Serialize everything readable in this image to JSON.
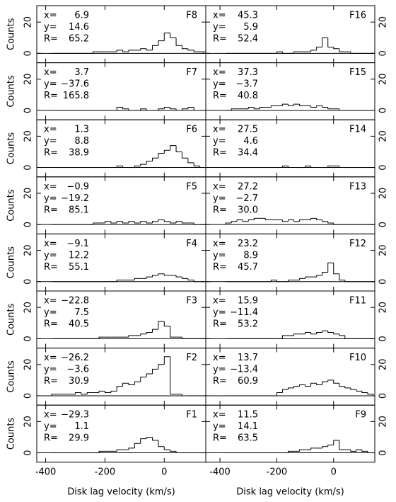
{
  "chart_data": [
    {
      "type": "histogram",
      "label": "F8",
      "stats": [
        [
          "x=",
          "6.9"
        ],
        [
          "y=",
          "14.6"
        ],
        [
          "R=",
          "65.2"
        ]
      ],
      "ylabel": "Counts",
      "bins": [
        -380,
        -360,
        -340,
        -320,
        -300,
        -280,
        -260,
        -240,
        -220,
        -200,
        -180,
        -160,
        -140,
        -120,
        -100,
        -80,
        -60,
        -40,
        -20,
        0,
        20,
        40,
        60,
        80,
        100,
        120,
        140
      ],
      "counts": [
        0,
        0,
        0,
        0,
        0,
        0,
        0,
        1,
        1,
        1,
        1,
        2,
        1,
        2,
        2,
        3,
        2,
        5,
        8,
        13,
        10,
        5,
        3,
        2,
        1,
        1
      ],
      "xlim": [
        -430,
        140
      ],
      "ylim": [
        -6,
        30.5
      ],
      "xticks": [
        -400,
        -200,
        0
      ],
      "yticks": [
        0,
        20
      ]
    },
    {
      "type": "histogram",
      "label": "F7",
      "stats": [
        [
          "x=",
          "3.7"
        ],
        [
          "y=",
          "−37.6"
        ],
        [
          "R=",
          "165.8"
        ]
      ],
      "ylabel": "Counts",
      "bins": [
        -380,
        -360,
        -340,
        -320,
        -300,
        -280,
        -260,
        -240,
        -220,
        -200,
        -180,
        -160,
        -140,
        -120,
        -100,
        -80,
        -60,
        -40,
        -20,
        0,
        20,
        40,
        60,
        80,
        100,
        120,
        140
      ],
      "counts": [
        0,
        0,
        0,
        0,
        0,
        0,
        0,
        0,
        0,
        0,
        0,
        2,
        1,
        0,
        0,
        1,
        0,
        0,
        1,
        2,
        1,
        0,
        1,
        2,
        0,
        0
      ],
      "xlim": [
        -430,
        140
      ],
      "ylim": [
        -6,
        30.5
      ],
      "xticks": [
        -400,
        -200,
        0
      ],
      "yticks": [
        0,
        20
      ]
    },
    {
      "type": "histogram",
      "label": "F6",
      "stats": [
        [
          "x=",
          "1.3"
        ],
        [
          "y=",
          "8.8"
        ],
        [
          "R=",
          "38.9"
        ]
      ],
      "ylabel": "Counts",
      "bins": [
        -380,
        -360,
        -340,
        -320,
        -300,
        -280,
        -260,
        -240,
        -220,
        -200,
        -180,
        -160,
        -140,
        -120,
        -100,
        -80,
        -60,
        -40,
        -20,
        0,
        20,
        40,
        60,
        80,
        100,
        120,
        140
      ],
      "counts": [
        0,
        0,
        0,
        0,
        0,
        0,
        0,
        0,
        0,
        0,
        0,
        1,
        0,
        0,
        1,
        2,
        4,
        6,
        9,
        11,
        14,
        10,
        6,
        3,
        1,
        0
      ],
      "xlim": [
        -430,
        140
      ],
      "ylim": [
        -6,
        30.5
      ],
      "xticks": [
        -400,
        -200,
        0
      ],
      "yticks": [
        0,
        20
      ]
    },
    {
      "type": "histogram",
      "label": "F5",
      "stats": [
        [
          "x=",
          "−0.9"
        ],
        [
          "y=",
          "−19.2"
        ],
        [
          "R=",
          "85.1"
        ]
      ],
      "ylabel": "Counts",
      "bins": [
        -380,
        -360,
        -340,
        -320,
        -300,
        -280,
        -260,
        -240,
        -220,
        -200,
        -180,
        -160,
        -140,
        -120,
        -100,
        -80,
        -60,
        -40,
        -20,
        0,
        20,
        40,
        60,
        80,
        100,
        120,
        140
      ],
      "counts": [
        0,
        0,
        0,
        0,
        0,
        0,
        0,
        1,
        1,
        2,
        1,
        2,
        1,
        2,
        1,
        2,
        1,
        2,
        3,
        2,
        1,
        2,
        1,
        1,
        0,
        0
      ],
      "xlim": [
        -430,
        140
      ],
      "ylim": [
        -6,
        30.5
      ],
      "xticks": [
        -400,
        -200,
        0
      ],
      "yticks": [
        0,
        20
      ]
    },
    {
      "type": "histogram",
      "label": "F4",
      "stats": [
        [
          "x=",
          "−9.1"
        ],
        [
          "y=",
          "12.2"
        ],
        [
          "R=",
          "55.1"
        ]
      ],
      "ylabel": "Counts",
      "bins": [
        -380,
        -360,
        -340,
        -320,
        -300,
        -280,
        -260,
        -240,
        -220,
        -200,
        -180,
        -160,
        -140,
        -120,
        -100,
        -80,
        -60,
        -40,
        -20,
        0,
        20,
        40,
        60,
        80,
        100,
        120,
        140
      ],
      "counts": [
        0,
        0,
        0,
        0,
        0,
        0,
        0,
        0,
        0,
        0,
        0,
        1,
        1,
        1,
        2,
        2,
        3,
        4,
        5,
        4,
        4,
        3,
        2,
        1,
        0,
        0
      ],
      "xlim": [
        -430,
        140
      ],
      "ylim": [
        -6,
        30.5
      ],
      "xticks": [
        -400,
        -200,
        0
      ],
      "yticks": [
        0,
        20
      ]
    },
    {
      "type": "histogram",
      "label": "F3",
      "stats": [
        [
          "x=",
          "−22.8"
        ],
        [
          "y=",
          "7.5"
        ],
        [
          "R=",
          "40.5"
        ]
      ],
      "ylabel": "Counts",
      "bins": [
        -380,
        -360,
        -340,
        -320,
        -300,
        -280,
        -260,
        -240,
        -220,
        -200,
        -180,
        -160,
        -140,
        -120,
        -100,
        -80,
        -60,
        -40,
        -20,
        0,
        20,
        40,
        60,
        80,
        100,
        120,
        140
      ],
      "counts": [
        0,
        0,
        0,
        0,
        0,
        0,
        0,
        0,
        1,
        1,
        1,
        1,
        1,
        2,
        2,
        3,
        4,
        6,
        11,
        8,
        1,
        1,
        0,
        0,
        0,
        0
      ],
      "xlim": [
        -430,
        140
      ],
      "ylim": [
        -6,
        30.5
      ],
      "xticks": [
        -400,
        -200,
        0
      ],
      "yticks": [
        0,
        20
      ]
    },
    {
      "type": "histogram",
      "label": "F2",
      "stats": [
        [
          "x=",
          "−26.2"
        ],
        [
          "y=",
          "−3.6"
        ],
        [
          "R=",
          "30.9"
        ]
      ],
      "ylabel": "Counts",
      "bins": [
        -380,
        -360,
        -340,
        -320,
        -300,
        -280,
        -260,
        -240,
        -220,
        -200,
        -180,
        -160,
        -140,
        -120,
        -100,
        -80,
        -60,
        -40,
        -20,
        0,
        20,
        40,
        60,
        80,
        100,
        120,
        140
      ],
      "counts": [
        1,
        1,
        1,
        1,
        2,
        1,
        2,
        2,
        3,
        2,
        3,
        6,
        8,
        7,
        9,
        12,
        14,
        17,
        20,
        25,
        1,
        1,
        0,
        0,
        0,
        0
      ],
      "xlim": [
        -430,
        140
      ],
      "ylim": [
        -6,
        30.5
      ],
      "xticks": [
        -400,
        -200,
        0
      ],
      "yticks": [
        0,
        20
      ]
    },
    {
      "type": "histogram",
      "label": "F1",
      "stats": [
        [
          "x=",
          "−29.3"
        ],
        [
          "y=",
          "1.1"
        ],
        [
          "R=",
          "29.9"
        ]
      ],
      "ylabel": "Counts",
      "xlabel": "Disk lag velocity (km/s)",
      "bins": [
        -380,
        -360,
        -340,
        -320,
        -300,
        -280,
        -260,
        -240,
        -220,
        -200,
        -180,
        -160,
        -140,
        -120,
        -100,
        -80,
        -60,
        -40,
        -20,
        0,
        20,
        40,
        60,
        80,
        100,
        120,
        140
      ],
      "counts": [
        0,
        0,
        0,
        0,
        0,
        0,
        0,
        0,
        1,
        1,
        1,
        2,
        2,
        3,
        6,
        9,
        10,
        8,
        4,
        2,
        1,
        0,
        0,
        0,
        0,
        0
      ],
      "xlim": [
        -430,
        140
      ],
      "ylim": [
        -6,
        30.5
      ],
      "xticks": [
        -400,
        -200,
        0
      ],
      "yticks": [
        0,
        20
      ]
    },
    {
      "type": "histogram",
      "label": "F16",
      "stats": [
        [
          "x=",
          "45.3"
        ],
        [
          "y=",
          "5.9"
        ],
        [
          "R=",
          "52.4"
        ]
      ],
      "bins": [
        -380,
        -360,
        -340,
        -320,
        -300,
        -280,
        -260,
        -240,
        -220,
        -200,
        -180,
        -160,
        -140,
        -120,
        -100,
        -80,
        -60,
        -40,
        -20,
        0,
        20,
        40,
        60,
        80,
        100,
        120,
        140
      ],
      "counts": [
        0,
        0,
        0,
        0,
        0,
        0,
        0,
        0,
        0,
        1,
        0,
        0,
        1,
        1,
        1,
        2,
        4,
        10,
        4,
        3,
        1,
        1,
        0,
        0,
        0,
        0
      ],
      "xlim": [
        -450,
        145
      ],
      "ylim": [
        -6,
        30.5
      ],
      "xticks": [
        -400,
        -200,
        0
      ],
      "yticks": [
        0,
        20
      ]
    },
    {
      "type": "histogram",
      "label": "F15",
      "stats": [
        [
          "x=",
          "37.3"
        ],
        [
          "y=",
          "−3.7"
        ],
        [
          "R=",
          "40.8"
        ]
      ],
      "bins": [
        -380,
        -360,
        -340,
        -320,
        -300,
        -280,
        -260,
        -240,
        -220,
        -200,
        -180,
        -160,
        -140,
        -120,
        -100,
        -80,
        -60,
        -40,
        -20,
        0,
        20,
        40,
        60,
        80,
        100,
        120,
        140
      ],
      "counts": [
        0,
        1,
        1,
        1,
        2,
        1,
        2,
        2,
        3,
        3,
        4,
        3,
        4,
        3,
        3,
        2,
        3,
        2,
        1,
        1,
        0,
        0,
        0,
        0,
        0,
        0
      ],
      "xlim": [
        -450,
        145
      ],
      "ylim": [
        -6,
        30.5
      ],
      "xticks": [
        -400,
        -200,
        0
      ],
      "yticks": [
        0,
        20
      ]
    },
    {
      "type": "histogram",
      "label": "F14",
      "stats": [
        [
          "x=",
          "27.5"
        ],
        [
          "y=",
          "4.6"
        ],
        [
          "R=",
          "34.4"
        ]
      ],
      "bins": [
        -380,
        -360,
        -340,
        -320,
        -300,
        -280,
        -260,
        -240,
        -220,
        -200,
        -180,
        -160,
        -140,
        -120,
        -100,
        -80,
        -60,
        -40,
        -20,
        0,
        20,
        40,
        60,
        80,
        100,
        120,
        140
      ],
      "counts": [
        0,
        0,
        0,
        0,
        0,
        0,
        0,
        0,
        0,
        0,
        1,
        0,
        0,
        0,
        1,
        0,
        0,
        0,
        1,
        1,
        0,
        0,
        0,
        0,
        0,
        0
      ],
      "xlim": [
        -450,
        145
      ],
      "ylim": [
        -6,
        30.5
      ],
      "xticks": [
        -400,
        -200,
        0
      ],
      "yticks": [
        0,
        20
      ]
    },
    {
      "type": "histogram",
      "label": "F13",
      "stats": [
        [
          "x=",
          "27.2"
        ],
        [
          "y=",
          "−2.7"
        ],
        [
          "R=",
          "30.0"
        ]
      ],
      "bins": [
        -380,
        -360,
        -340,
        -320,
        -300,
        -280,
        -260,
        -240,
        -220,
        -200,
        -180,
        -160,
        -140,
        -120,
        -100,
        -80,
        -60,
        -40,
        -20,
        0,
        20,
        40,
        60,
        80,
        100,
        120,
        140
      ],
      "counts": [
        1,
        2,
        3,
        2,
        3,
        4,
        4,
        3,
        3,
        3,
        2,
        3,
        2,
        3,
        3,
        4,
        3,
        2,
        1,
        0,
        0,
        0,
        0,
        0,
        0,
        0
      ],
      "xlim": [
        -450,
        145
      ],
      "ylim": [
        -6,
        30.5
      ],
      "xticks": [
        -400,
        -200,
        0
      ],
      "yticks": [
        0,
        20
      ]
    },
    {
      "type": "histogram",
      "label": "F12",
      "stats": [
        [
          "x=",
          "23.2"
        ],
        [
          "y=",
          "8.9"
        ],
        [
          "R=",
          "45.7"
        ]
      ],
      "bins": [
        -380,
        -360,
        -340,
        -320,
        -300,
        -280,
        -260,
        -240,
        -220,
        -200,
        -180,
        -160,
        -140,
        -120,
        -100,
        -80,
        -60,
        -40,
        -20,
        0,
        20,
        40,
        60,
        80,
        100,
        120,
        140
      ],
      "counts": [
        0,
        0,
        0,
        0,
        0,
        0,
        0,
        0,
        1,
        0,
        0,
        1,
        1,
        2,
        3,
        3,
        4,
        6,
        12,
        5,
        1,
        0,
        0,
        0,
        0,
        0
      ],
      "xlim": [
        -450,
        145
      ],
      "ylim": [
        -6,
        30.5
      ],
      "xticks": [
        -400,
        -200,
        0
      ],
      "yticks": [
        0,
        20
      ]
    },
    {
      "type": "histogram",
      "label": "F11",
      "stats": [
        [
          "x=",
          "15.9"
        ],
        [
          "y=",
          "−11.4"
        ],
        [
          "R=",
          "53.2"
        ]
      ],
      "bins": [
        -380,
        -360,
        -340,
        -320,
        -300,
        -280,
        -260,
        -240,
        -220,
        -200,
        -180,
        -160,
        -140,
        -120,
        -100,
        -80,
        -60,
        -40,
        -20,
        0,
        20,
        40,
        60,
        80,
        100,
        120,
        140
      ],
      "counts": [
        0,
        0,
        0,
        0,
        0,
        0,
        0,
        0,
        0,
        0,
        2,
        2,
        3,
        3,
        4,
        3,
        4,
        5,
        4,
        3,
        2,
        0,
        0,
        0,
        0,
        0
      ],
      "xlim": [
        -450,
        145
      ],
      "ylim": [
        -6,
        30.5
      ],
      "xticks": [
        -400,
        -200,
        0
      ],
      "yticks": [
        0,
        20
      ]
    },
    {
      "type": "histogram",
      "label": "F10",
      "stats": [
        [
          "x=",
          "13.7"
        ],
        [
          "y=",
          "−13.4"
        ],
        [
          "R=",
          "60.9"
        ]
      ],
      "bins": [
        -380,
        -360,
        -340,
        -320,
        -300,
        -280,
        -260,
        -240,
        -220,
        -200,
        -180,
        -160,
        -140,
        -120,
        -100,
        -80,
        -60,
        -40,
        -20,
        0,
        20,
        40,
        60,
        80,
        100,
        120,
        140
      ],
      "counts": [
        0,
        0,
        0,
        0,
        0,
        0,
        0,
        0,
        0,
        2,
        4,
        5,
        6,
        7,
        6,
        8,
        7,
        9,
        10,
        8,
        6,
        5,
        4,
        3,
        2,
        1
      ],
      "xlim": [
        -450,
        145
      ],
      "ylim": [
        -6,
        30.5
      ],
      "xticks": [
        -400,
        -200,
        0
      ],
      "yticks": [
        0,
        20
      ]
    },
    {
      "type": "histogram",
      "label": "F9",
      "stats": [
        [
          "x=",
          "11.5"
        ],
        [
          "y=",
          "14.1"
        ],
        [
          "R=",
          "63.5"
        ]
      ],
      "xlabel": "Disk lag velocity (km/s)",
      "bins": [
        -380,
        -360,
        -340,
        -320,
        -300,
        -280,
        -260,
        -240,
        -220,
        -200,
        -180,
        -160,
        -140,
        -120,
        -100,
        -80,
        -60,
        -40,
        -20,
        0,
        20,
        40,
        60,
        80,
        100,
        120,
        140
      ],
      "counts": [
        0,
        0,
        0,
        0,
        0,
        0,
        0,
        0,
        0,
        0,
        0,
        1,
        1,
        2,
        2,
        3,
        3,
        4,
        5,
        8,
        2,
        2,
        1,
        2,
        1,
        0
      ],
      "xlim": [
        -450,
        145
      ],
      "ylim": [
        -6,
        30.5
      ],
      "xticks": [
        -400,
        -200,
        0
      ],
      "yticks": [
        0,
        20
      ]
    }
  ]
}
